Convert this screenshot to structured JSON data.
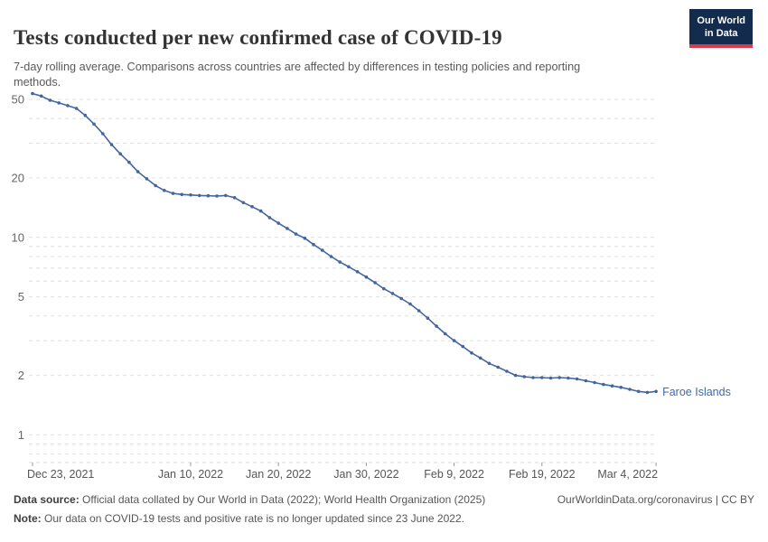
{
  "header": {
    "title": "Tests conducted per new confirmed case of COVID-19",
    "subtitle": "7-day rolling average. Comparisons across countries are affected by differences in testing policies and reporting methods.",
    "logo": {
      "line1": "Our World",
      "line2": "in Data"
    }
  },
  "chart_data": {
    "type": "line",
    "y_scale": "log",
    "title": "Tests conducted per new confirmed case of COVID-19",
    "xlabel": "",
    "ylabel": "",
    "ylim": [
      0.72,
      57
    ],
    "grid": "dashed-horizontal",
    "legend_position": "end-of-line-label",
    "y_ticks": [
      1,
      2,
      5,
      10,
      20,
      50
    ],
    "y_gridlines_minor": [
      0.8,
      0.9,
      3,
      4,
      6,
      7,
      8,
      9,
      30,
      40
    ],
    "x_ticks": [
      {
        "label": "Dec 23, 2021",
        "day": 0
      },
      {
        "label": "Jan 10, 2022",
        "day": 18
      },
      {
        "label": "Jan 20, 2022",
        "day": 28
      },
      {
        "label": "Jan 30, 2022",
        "day": 38
      },
      {
        "label": "Feb 9, 2022",
        "day": 48
      },
      {
        "label": "Feb 19, 2022",
        "day": 58
      },
      {
        "label": "Mar 4, 2022",
        "day": 71
      }
    ],
    "series": [
      {
        "name": "Faroe Islands",
        "color": "#43669f",
        "label_color": "#3d6aa8",
        "dates": [
          "2021-12-23",
          "2021-12-24",
          "2021-12-25",
          "2021-12-26",
          "2021-12-27",
          "2021-12-28",
          "2021-12-29",
          "2021-12-30",
          "2021-12-31",
          "2022-01-01",
          "2022-01-02",
          "2022-01-03",
          "2022-01-04",
          "2022-01-05",
          "2022-01-06",
          "2022-01-07",
          "2022-01-08",
          "2022-01-09",
          "2022-01-10",
          "2022-01-11",
          "2022-01-12",
          "2022-01-13",
          "2022-01-14",
          "2022-01-15",
          "2022-01-16",
          "2022-01-17",
          "2022-01-18",
          "2022-01-19",
          "2022-01-20",
          "2022-01-21",
          "2022-01-22",
          "2022-01-23",
          "2022-01-24",
          "2022-01-25",
          "2022-01-26",
          "2022-01-27",
          "2022-01-28",
          "2022-01-29",
          "2022-01-30",
          "2022-01-31",
          "2022-02-01",
          "2022-02-02",
          "2022-02-03",
          "2022-02-04",
          "2022-02-05",
          "2022-02-06",
          "2022-02-07",
          "2022-02-08",
          "2022-02-09",
          "2022-02-10",
          "2022-02-11",
          "2022-02-12",
          "2022-02-13",
          "2022-02-14",
          "2022-02-15",
          "2022-02-16",
          "2022-02-17",
          "2022-02-18",
          "2022-02-19",
          "2022-02-20",
          "2022-02-21",
          "2022-02-22",
          "2022-02-23",
          "2022-02-24",
          "2022-02-25",
          "2022-02-26",
          "2022-02-27",
          "2022-02-28",
          "2022-03-01",
          "2022-03-02",
          "2022-03-03",
          "2022-03-04"
        ],
        "values": [
          53.5,
          52,
          49.5,
          48,
          46.5,
          45,
          41.5,
          37.5,
          33.5,
          29.5,
          26.5,
          24,
          21.5,
          19.8,
          18.3,
          17.3,
          16.7,
          16.5,
          16.4,
          16.3,
          16.25,
          16.2,
          16.3,
          15.9,
          15.0,
          14.3,
          13.6,
          12.6,
          11.8,
          11.1,
          10.4,
          9.9,
          9.2,
          8.6,
          8.0,
          7.5,
          7.1,
          6.7,
          6.3,
          5.9,
          5.5,
          5.2,
          4.9,
          4.6,
          4.25,
          3.9,
          3.55,
          3.25,
          3.0,
          2.8,
          2.6,
          2.45,
          2.3,
          2.2,
          2.1,
          2.0,
          1.97,
          1.95,
          1.95,
          1.94,
          1.95,
          1.94,
          1.92,
          1.88,
          1.84,
          1.8,
          1.77,
          1.74,
          1.7,
          1.66,
          1.64,
          1.66
        ]
      }
    ]
  },
  "footer": {
    "source_label": "Data source:",
    "source_text": " Official data collated by Our World in Data (2022); World Health Organization (2025)",
    "link_text": "OurWorldinData.org/coronavirus | CC BY",
    "note_label": "Note:",
    "note_text": " Our data on COVID-19 tests and positive rate is no longer updated since 23 June 2022."
  }
}
